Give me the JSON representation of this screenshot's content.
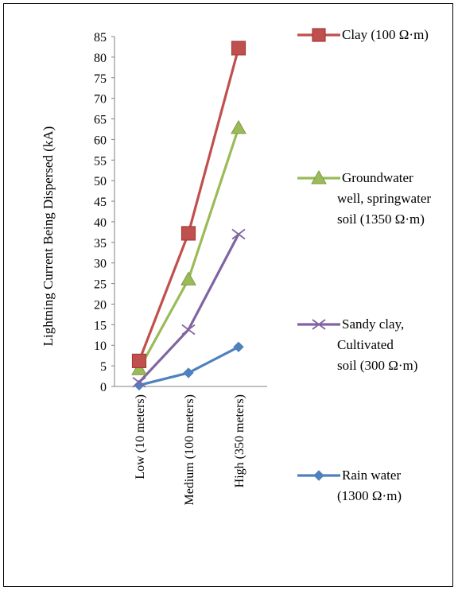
{
  "chart_data": {
    "type": "line",
    "title": "",
    "xlabel": "",
    "ylabel": "Lightning Current Being Dispersed (kA)",
    "categories": [
      "Low (10 meters)",
      "Medium (100 meters)",
      "High (350  meters)"
    ],
    "ylim": [
      0,
      85
    ],
    "yticks": [
      0,
      5,
      10,
      15,
      20,
      25,
      30,
      35,
      40,
      45,
      50,
      55,
      60,
      65,
      70,
      75,
      80,
      85
    ],
    "grid": false,
    "legend_position": "right",
    "series": [
      {
        "name": "Clay (100 Ω·m)",
        "legend_lines": [
          "Clay (100 Ω·m)"
        ],
        "values": [
          6.2,
          37.2,
          82.2
        ],
        "color": "#C0504D",
        "marker": "square"
      },
      {
        "name": "Groundwater well, springwater soil (1350 Ω·m)",
        "legend_lines": [
          "Groundwater",
          "well, springwater",
          "soil (1350 Ω·m)"
        ],
        "values": [
          4.2,
          26.0,
          62.8
        ],
        "color": "#9BBB59",
        "marker": "triangle"
      },
      {
        "name": "Sandy clay, Cultivated soil (300 Ω·m)",
        "legend_lines": [
          "Sandy clay,",
          "Cultivated",
          "soil (300 Ω·m)"
        ],
        "values": [
          1.0,
          13.8,
          37.0
        ],
        "color": "#8064A2",
        "marker": "x"
      },
      {
        "name": "Rain water (1300 Ω·m)",
        "legend_lines": [
          "Rain water",
          "(1300 Ω·m)"
        ],
        "values": [
          0.3,
          3.3,
          9.6
        ],
        "color": "#4F81BD",
        "marker": "diamond"
      }
    ]
  }
}
